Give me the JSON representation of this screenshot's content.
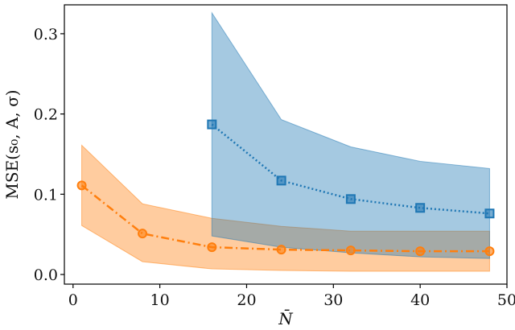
{
  "chart_data": {
    "type": "line",
    "title": "",
    "xlabel": "N̄",
    "ylabel": "MSE(s₀, A, σ)",
    "xlim": [
      -1,
      50
    ],
    "ylim": [
      -0.012,
      0.336
    ],
    "xticks": [
      0,
      10,
      20,
      30,
      40,
      50
    ],
    "xtick_labels": [
      "0",
      "10",
      "20",
      "30",
      "40",
      "50"
    ],
    "yticks": [
      0.0,
      0.1,
      0.2,
      0.3
    ],
    "ytick_labels": [
      "0.0",
      "0.1",
      "0.2",
      "0.3"
    ],
    "grid": false,
    "legend": false,
    "series": [
      {
        "color": "#ff7f0e",
        "marker": "circle",
        "linestyle": "dashdot",
        "x": [
          1,
          8,
          16,
          24,
          32,
          40,
          48
        ],
        "y": [
          0.111,
          0.051,
          0.034,
          0.031,
          0.03,
          0.029,
          0.029
        ],
        "band_upper": [
          0.161,
          0.088,
          0.07,
          0.06,
          0.054,
          0.054,
          0.054
        ],
        "band_lower": [
          0.061,
          0.016,
          0.007,
          0.005,
          0.004,
          0.004,
          0.004
        ]
      },
      {
        "color": "#1f77b4",
        "marker": "square",
        "linestyle": "dotted",
        "x": [
          16,
          24,
          32,
          40,
          48
        ],
        "y": [
          0.187,
          0.117,
          0.094,
          0.083,
          0.076
        ],
        "band_upper": [
          0.326,
          0.193,
          0.159,
          0.141,
          0.132
        ],
        "band_lower": [
          0.048,
          0.034,
          0.027,
          0.022,
          0.02
        ]
      }
    ]
  }
}
